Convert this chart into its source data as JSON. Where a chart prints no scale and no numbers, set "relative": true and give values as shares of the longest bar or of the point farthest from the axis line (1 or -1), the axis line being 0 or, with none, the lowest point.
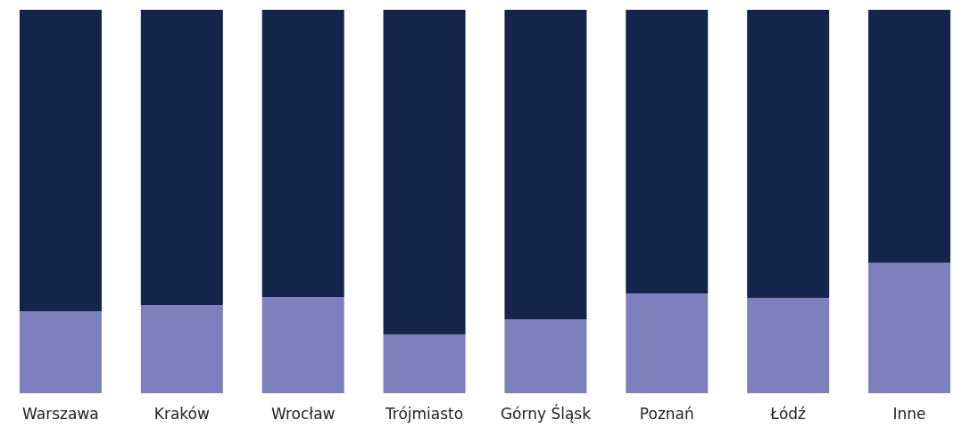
{
  "chart_data": {
    "type": "bar",
    "relative": true,
    "stacked": true,
    "categories": [
      "Warszawa",
      "Kraków",
      "Wrocław",
      "Trójmiasto",
      "Górny Śląsk",
      "Poznań",
      "Łódź",
      "Inne"
    ],
    "series": [
      {
        "color": "#7e80be",
        "values": [
          0.214,
          0.23,
          0.251,
          0.153,
          0.193,
          0.26,
          0.249,
          0.34
        ]
      },
      {
        "color": "#14244a",
        "values": [
          0.786,
          0.77,
          0.749,
          0.847,
          0.807,
          0.74,
          0.751,
          0.66
        ]
      }
    ]
  }
}
